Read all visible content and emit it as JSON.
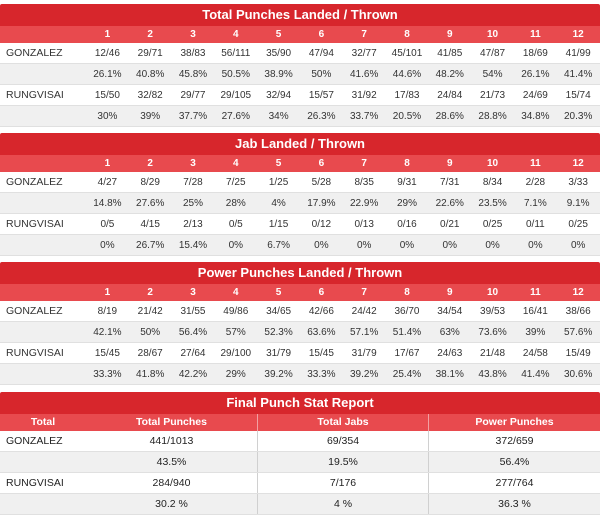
{
  "sections": [
    {
      "title": "Total Punches Landed / Thrown",
      "rounds": [
        "1",
        "2",
        "3",
        "4",
        "5",
        "6",
        "7",
        "8",
        "9",
        "10",
        "11",
        "12"
      ],
      "fighters": [
        {
          "name": "GONZALEZ",
          "counts": [
            "12/46",
            "29/71",
            "38/83",
            "56/111",
            "35/90",
            "47/94",
            "32/77",
            "45/101",
            "41/85",
            "47/87",
            "18/69",
            "41/99"
          ],
          "pcts": [
            "26.1%",
            "40.8%",
            "45.8%",
            "50.5%",
            "38.9%",
            "50%",
            "41.6%",
            "44.6%",
            "48.2%",
            "54%",
            "26.1%",
            "41.4%"
          ]
        },
        {
          "name": "RUNGVISAI",
          "counts": [
            "15/50",
            "32/82",
            "29/77",
            "29/105",
            "32/94",
            "15/57",
            "31/92",
            "17/83",
            "24/84",
            "21/73",
            "24/69",
            "15/74"
          ],
          "pcts": [
            "30%",
            "39%",
            "37.7%",
            "27.6%",
            "34%",
            "26.3%",
            "33.7%",
            "20.5%",
            "28.6%",
            "28.8%",
            "34.8%",
            "20.3%"
          ]
        }
      ]
    },
    {
      "title": "Jab Landed / Thrown",
      "rounds": [
        "1",
        "2",
        "3",
        "4",
        "5",
        "6",
        "7",
        "8",
        "9",
        "10",
        "11",
        "12"
      ],
      "fighters": [
        {
          "name": "GONZALEZ",
          "counts": [
            "4/27",
            "8/29",
            "7/28",
            "7/25",
            "1/25",
            "5/28",
            "8/35",
            "9/31",
            "7/31",
            "8/34",
            "2/28",
            "3/33"
          ],
          "pcts": [
            "14.8%",
            "27.6%",
            "25%",
            "28%",
            "4%",
            "17.9%",
            "22.9%",
            "29%",
            "22.6%",
            "23.5%",
            "7.1%",
            "9.1%"
          ]
        },
        {
          "name": "RUNGVISAI",
          "counts": [
            "0/5",
            "4/15",
            "2/13",
            "0/5",
            "1/15",
            "0/12",
            "0/13",
            "0/16",
            "0/21",
            "0/25",
            "0/11",
            "0/25"
          ],
          "pcts": [
            "0%",
            "26.7%",
            "15.4%",
            "0%",
            "6.7%",
            "0%",
            "0%",
            "0%",
            "0%",
            "0%",
            "0%",
            "0%"
          ]
        }
      ]
    },
    {
      "title": "Power Punches Landed / Thrown",
      "rounds": [
        "1",
        "2",
        "3",
        "4",
        "5",
        "6",
        "7",
        "8",
        "9",
        "10",
        "11",
        "12"
      ],
      "fighters": [
        {
          "name": "GONZALEZ",
          "counts": [
            "8/19",
            "21/42",
            "31/55",
            "49/86",
            "34/65",
            "42/66",
            "24/42",
            "36/70",
            "34/54",
            "39/53",
            "16/41",
            "38/66"
          ],
          "pcts": [
            "42.1%",
            "50%",
            "56.4%",
            "57%",
            "52.3%",
            "63.6%",
            "57.1%",
            "51.4%",
            "63%",
            "73.6%",
            "39%",
            "57.6%"
          ]
        },
        {
          "name": "RUNGVISAI",
          "counts": [
            "15/45",
            "28/67",
            "27/64",
            "29/100",
            "31/79",
            "15/45",
            "31/79",
            "17/67",
            "24/63",
            "21/48",
            "24/58",
            "15/49"
          ],
          "pcts": [
            "33.3%",
            "41.8%",
            "42.2%",
            "29%",
            "39.2%",
            "33.3%",
            "39.2%",
            "25.4%",
            "38.1%",
            "43.8%",
            "41.4%",
            "30.6%"
          ]
        }
      ]
    }
  ],
  "final": {
    "title": "Final Punch Stat Report",
    "headers": [
      "Total",
      "Total Punches",
      "Total Jabs",
      "Power Punches"
    ],
    "fighters": [
      {
        "name": "GONZALEZ",
        "counts": [
          "441/1013",
          "69/354",
          "372/659"
        ],
        "pcts": [
          "43.5%",
          "19.5%",
          "56.4%"
        ]
      },
      {
        "name": "RUNGVISAI",
        "counts": [
          "284/940",
          "7/176",
          "277/764"
        ],
        "pcts": [
          "30.2 %",
          "4 %",
          "36.3 %"
        ]
      }
    ]
  },
  "colors": {
    "title_bg": "#d7262c",
    "round_bg": "#e84a4e",
    "alt_row": "#f0f0f0"
  }
}
